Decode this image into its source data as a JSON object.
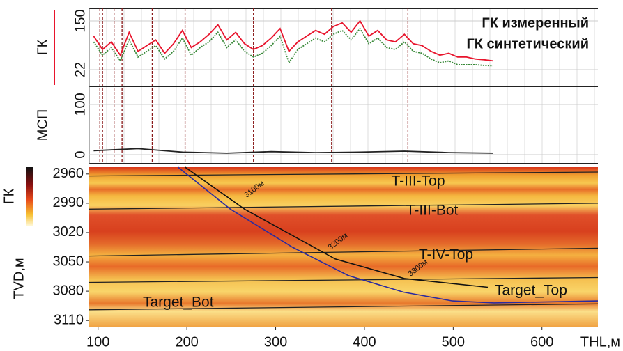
{
  "chart_data": [
    {
      "type": "line",
      "y_label": "ГК",
      "xlim": [
        90,
        663
      ],
      "ylim": [
        -22,
        183
      ],
      "yticks": [
        22,
        150
      ],
      "x": [
        95,
        105,
        115,
        125,
        135,
        145,
        155,
        165,
        175,
        185,
        195,
        205,
        215,
        225,
        235,
        245,
        255,
        265,
        275,
        285,
        295,
        305,
        315,
        325,
        335,
        345,
        355,
        365,
        375,
        385,
        395,
        405,
        415,
        425,
        435,
        445,
        455,
        465,
        475,
        485,
        495,
        505,
        515,
        525,
        535,
        545
      ],
      "series": [
        {
          "name": "ГК измеренный",
          "color": "#e8142c",
          "values": [
            110,
            75,
            95,
            60,
            120,
            70,
            85,
            100,
            65,
            90,
            125,
            80,
            95,
            115,
            140,
            100,
            120,
            90,
            75,
            85,
            105,
            130,
            70,
            95,
            110,
            125,
            115,
            135,
            145,
            120,
            150,
            110,
            125,
            100,
            95,
            115,
            90,
            85,
            70,
            60,
            65,
            55,
            55,
            50,
            48,
            45
          ]
        },
        {
          "name": "ГК синтетический",
          "color": "#3a8a3a",
          "values": [
            95,
            60,
            80,
            45,
            100,
            55,
            70,
            85,
            50,
            70,
            105,
            60,
            80,
            95,
            120,
            80,
            100,
            70,
            55,
            65,
            85,
            110,
            40,
            75,
            90,
            105,
            95,
            115,
            125,
            100,
            130,
            90,
            105,
            80,
            75,
            95,
            70,
            65,
            50,
            40,
            45,
            35,
            35,
            35,
            33,
            32
          ]
        }
      ],
      "markers_x": [
        102,
        105,
        118,
        127,
        161,
        198,
        275,
        363,
        449
      ]
    },
    {
      "type": "line",
      "y_label": "МСП",
      "xlim": [
        90,
        663
      ],
      "ylim": [
        -18,
        136
      ],
      "yticks": [
        0,
        100
      ],
      "x": [
        95,
        145,
        195,
        245,
        295,
        345,
        395,
        445,
        495,
        545
      ],
      "series": [
        {
          "color": "#222222",
          "values": [
            8,
            12,
            5,
            3,
            6,
            4,
            5,
            7,
            4,
            3
          ]
        }
      ]
    },
    {
      "type": "section",
      "y_label": "TVD,м",
      "x_label": "THL,м",
      "colorbar_label": "ГК",
      "xlim": [
        90,
        663
      ],
      "ylim": [
        2953,
        3117
      ],
      "xticks": [
        100,
        200,
        300,
        400,
        500,
        600
      ],
      "yticks": [
        2960,
        2990,
        3020,
        3050,
        3080,
        3110
      ],
      "horizons": [
        {
          "name": "T-III-Top",
          "x": [
            90,
            663
          ],
          "values": [
            2962,
            2958
          ]
        },
        {
          "name": "T-III-Bot",
          "x": [
            90,
            663
          ],
          "values": [
            2996,
            2990
          ]
        },
        {
          "name": "T-IV-Top",
          "x": [
            90,
            663
          ],
          "values": [
            3044,
            3036
          ]
        },
        {
          "name": "Target_Top",
          "x": [
            90,
            663
          ],
          "values": [
            3071,
            3066
          ]
        },
        {
          "name": "Target_Bot",
          "x": [
            90,
            663
          ],
          "values": [
            3099,
            3093
          ]
        }
      ],
      "trajectories": [
        {
          "color": "#2a2aa0",
          "x": [
            190,
            249,
            319,
            382,
            444,
            499,
            546,
            663
          ],
          "values": [
            2953,
            2996,
            3035,
            3064,
            3081,
            3090,
            3092,
            3090
          ]
        },
        {
          "color": "#111111",
          "x": [
            198,
            265,
            367,
            445,
            539
          ],
          "values": [
            2953,
            2996,
            3047,
            3067,
            3076
          ]
        }
      ],
      "md_labels": [
        "3100м",
        "3200м",
        "3300м"
      ]
    }
  ]
}
